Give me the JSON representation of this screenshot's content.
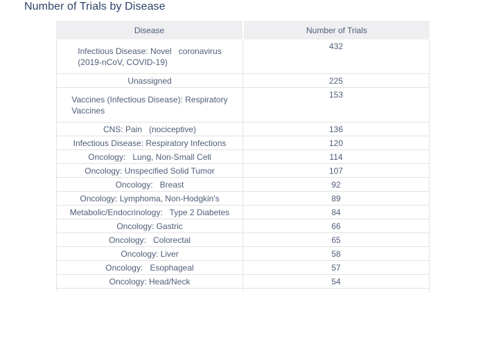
{
  "page": {
    "title": "Number of Trials by Disease"
  },
  "colors": {
    "title": "#2d4368",
    "text": "#4e5d78",
    "header_bg": "#efeff1",
    "border": "#e2e2e4"
  },
  "table": {
    "columns": [
      "Disease",
      "Number of Trials"
    ],
    "rows": [
      {
        "disease": "Infectious Disease: Novel   coronavirus\n(2019-nCoV, COVID-19)",
        "trials": "432",
        "tall": true
      },
      {
        "disease": "Unassigned",
        "trials": "225",
        "tall": false
      },
      {
        "disease": "Vaccines (Infectious Disease): Respiratory\nVaccines",
        "trials": "153",
        "tall": true
      },
      {
        "disease": "CNS: Pain   (nociceptive)",
        "trials": "136",
        "tall": false
      },
      {
        "disease": "Infectious Disease: Respiratory Infections",
        "trials": "120",
        "tall": false
      },
      {
        "disease": "Oncology:   Lung, Non-Small Cell",
        "trials": "114",
        "tall": false
      },
      {
        "disease": "Oncology: Unspecified Solid Tumor",
        "trials": "107",
        "tall": false
      },
      {
        "disease": "Oncology:   Breast",
        "trials": "92",
        "tall": false
      },
      {
        "disease": "Oncology: Lymphoma, Non-Hodgkin's",
        "trials": "89",
        "tall": false
      },
      {
        "disease": "Metabolic/Endocrinology:   Type 2 Diabetes",
        "trials": "84",
        "tall": false
      },
      {
        "disease": "Oncology: Gastric",
        "trials": "66",
        "tall": false
      },
      {
        "disease": "Oncology:   Colorectal",
        "trials": "65",
        "tall": false
      },
      {
        "disease": "Oncology: Liver",
        "trials": "58",
        "tall": false
      },
      {
        "disease": "Oncology:   Esophageal",
        "trials": "57",
        "tall": false
      },
      {
        "disease": "Oncology: Head/Neck",
        "trials": "54",
        "tall": false
      }
    ]
  },
  "chart_data": {
    "type": "table",
    "title": "Number of Trials by Disease",
    "columns": [
      "Disease",
      "Number of Trials"
    ],
    "categories": [
      "Infectious Disease: Novel coronavirus (2019-nCoV, COVID-19)",
      "Unassigned",
      "Vaccines (Infectious Disease): Respiratory Vaccines",
      "CNS: Pain (nociceptive)",
      "Infectious Disease: Respiratory Infections",
      "Oncology: Lung, Non-Small Cell",
      "Oncology: Unspecified Solid Tumor",
      "Oncology: Breast",
      "Oncology: Lymphoma, Non-Hodgkin's",
      "Metabolic/Endocrinology: Type 2 Diabetes",
      "Oncology: Gastric",
      "Oncology: Colorectal",
      "Oncology: Liver",
      "Oncology: Esophageal",
      "Oncology: Head/Neck"
    ],
    "values": [
      432,
      225,
      153,
      136,
      120,
      114,
      107,
      92,
      89,
      84,
      66,
      65,
      58,
      57,
      54
    ]
  }
}
